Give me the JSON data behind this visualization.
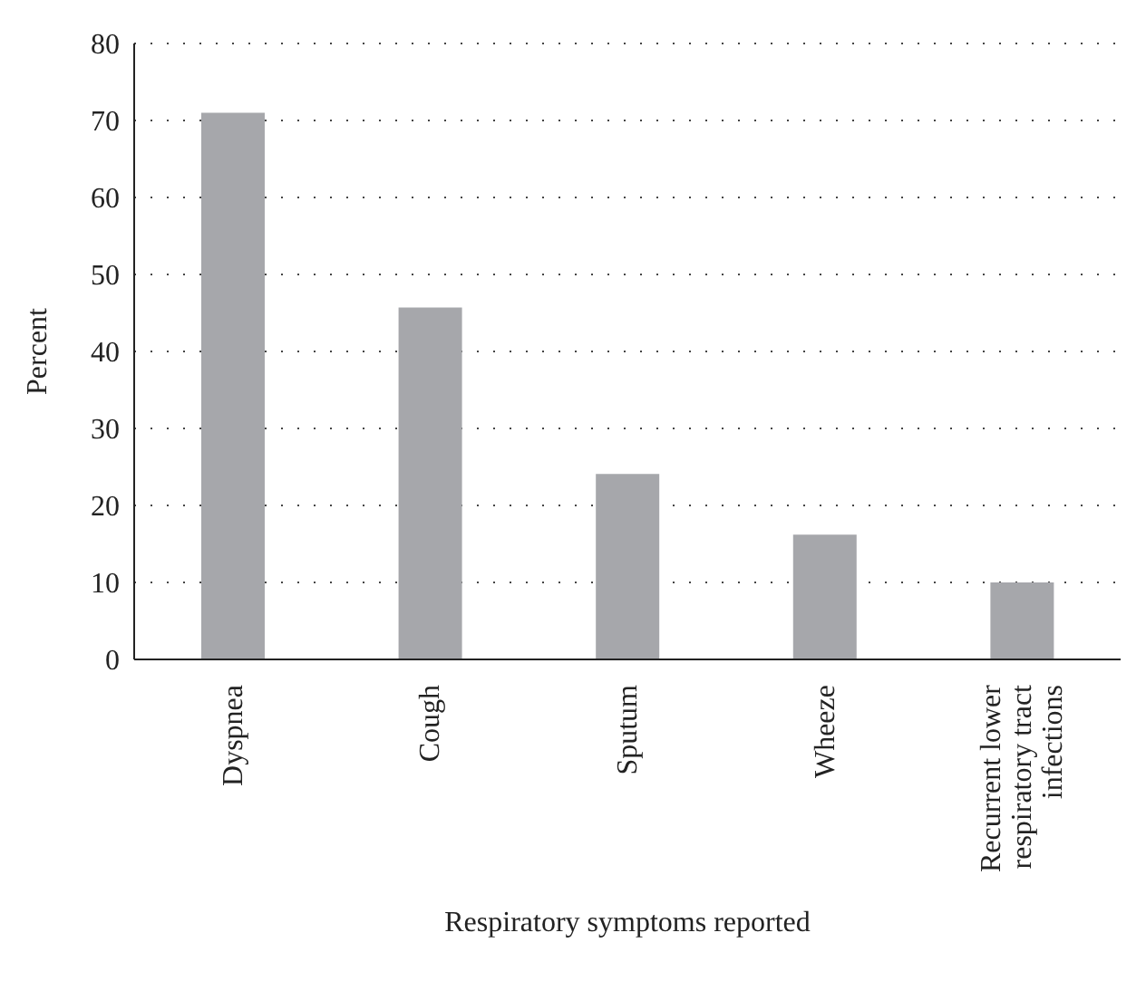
{
  "chart_data": {
    "type": "bar",
    "xlabel": "Respiratory symptoms reported",
    "ylabel": "Percent",
    "categories": [
      "Dyspnea",
      "Cough",
      "Sputum",
      "Wheeze",
      "Recurrent lower respiratory tract infections"
    ],
    "values": [
      71,
      45.7,
      24.1,
      16.2,
      10
    ],
    "color": "#a6a7ab",
    "ylim": [
      0,
      80
    ],
    "yticks": [
      0,
      10,
      20,
      30,
      40,
      50,
      60,
      70,
      80
    ],
    "grid": "y"
  }
}
